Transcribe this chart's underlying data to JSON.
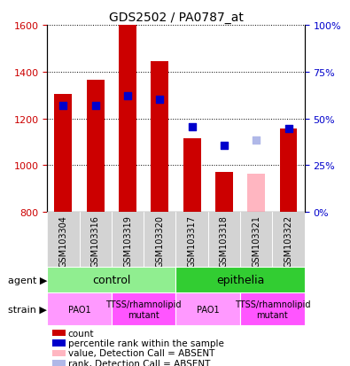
{
  "title": "GDS2502 / PA0787_at",
  "samples": [
    "GSM103304",
    "GSM103316",
    "GSM103319",
    "GSM103320",
    "GSM103317",
    "GSM103318",
    "GSM103321",
    "GSM103322"
  ],
  "bar_values": [
    1305,
    1365,
    1600,
    1445,
    1115,
    970,
    null,
    1155
  ],
  "bar_colors": [
    "#cc0000",
    "#cc0000",
    "#cc0000",
    "#cc0000",
    "#cc0000",
    "#cc0000",
    null,
    "#cc0000"
  ],
  "absent_bar_values": [
    null,
    null,
    null,
    null,
    null,
    null,
    965,
    null
  ],
  "absent_bar_color": "#ffb6c1",
  "bar_base": 800,
  "rank_values": [
    1255,
    1255,
    1295,
    1283,
    1163,
    1083,
    null,
    1155
  ],
  "rank_colors": [
    "#0000cc",
    "#0000cc",
    "#0000cc",
    "#0000cc",
    "#0000cc",
    "#0000cc",
    null,
    "#0000cc"
  ],
  "absent_rank_values": [
    null,
    null,
    null,
    null,
    null,
    null,
    1108,
    null
  ],
  "absent_rank_color": "#b0b8e8",
  "ylim_left": [
    800,
    1600
  ],
  "ylim_right": [
    0,
    100
  ],
  "yticks_left": [
    800,
    1000,
    1200,
    1400,
    1600
  ],
  "yticks_right": [
    0,
    25,
    50,
    75,
    100
  ],
  "agent_groups": [
    {
      "label": "control",
      "start": 0,
      "end": 4,
      "color": "#90ee90"
    },
    {
      "label": "epithelia",
      "start": 4,
      "end": 8,
      "color": "#32cd32"
    }
  ],
  "strain_groups": [
    {
      "label": "PAO1",
      "start": 0,
      "end": 2,
      "color": "#ff99ff"
    },
    {
      "label": "TTSS/rhamnolipid\nmutant",
      "start": 2,
      "end": 4,
      "color": "#ff55ff"
    },
    {
      "label": "PAO1",
      "start": 4,
      "end": 6,
      "color": "#ff99ff"
    },
    {
      "label": "TTSS/rhamnolipid\nmutant",
      "start": 6,
      "end": 8,
      "color": "#ff55ff"
    }
  ],
  "bar_width": 0.55,
  "tick_color_left": "#cc0000",
  "tick_color_right": "#0000cc",
  "grid_color": "#000000",
  "legend_items": [
    {
      "color": "#cc0000",
      "label": "count"
    },
    {
      "color": "#0000cc",
      "label": "percentile rank within the sample"
    },
    {
      "color": "#ffb6c1",
      "label": "value, Detection Call = ABSENT"
    },
    {
      "color": "#b0b8e8",
      "label": "rank, Detection Call = ABSENT"
    }
  ]
}
